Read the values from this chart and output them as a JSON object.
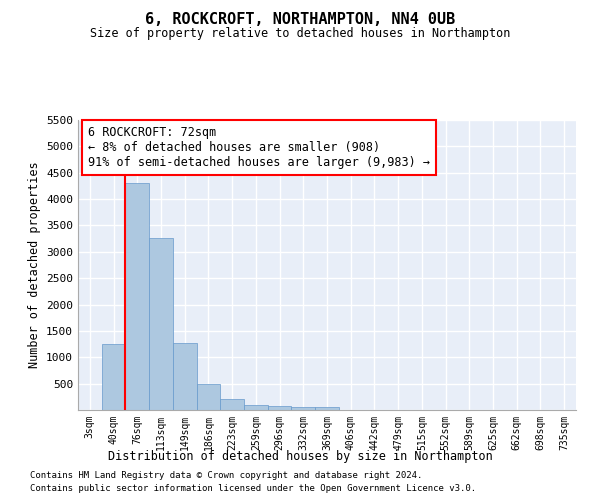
{
  "title": "6, ROCKCROFT, NORTHAMPTON, NN4 0UB",
  "subtitle": "Size of property relative to detached houses in Northampton",
  "xlabel": "Distribution of detached houses by size in Northampton",
  "ylabel": "Number of detached properties",
  "bar_color": "#adc8e0",
  "bar_edge_color": "#6699cc",
  "background_color": "#e8eef8",
  "grid_color": "#ffffff",
  "categories": [
    "3sqm",
    "40sqm",
    "76sqm",
    "113sqm",
    "149sqm",
    "186sqm",
    "223sqm",
    "259sqm",
    "296sqm",
    "332sqm",
    "369sqm",
    "406sqm",
    "442sqm",
    "479sqm",
    "515sqm",
    "552sqm",
    "589sqm",
    "625sqm",
    "662sqm",
    "698sqm",
    "735sqm"
  ],
  "values": [
    0,
    1250,
    4300,
    3270,
    1270,
    490,
    215,
    90,
    75,
    55,
    50,
    0,
    0,
    0,
    0,
    0,
    0,
    0,
    0,
    0,
    0
  ],
  "ylim": [
    0,
    5500
  ],
  "yticks": [
    0,
    500,
    1000,
    1500,
    2000,
    2500,
    3000,
    3500,
    4000,
    4500,
    5000,
    5500
  ],
  "red_line_x": 2.0,
  "annotation_line1": "6 ROCKCROFT: 72sqm",
  "annotation_line2": "← 8% of detached houses are smaller (908)",
  "annotation_line3": "91% of semi-detached houses are larger (9,983) →",
  "footer_line1": "Contains HM Land Registry data © Crown copyright and database right 2024.",
  "footer_line2": "Contains public sector information licensed under the Open Government Licence v3.0."
}
